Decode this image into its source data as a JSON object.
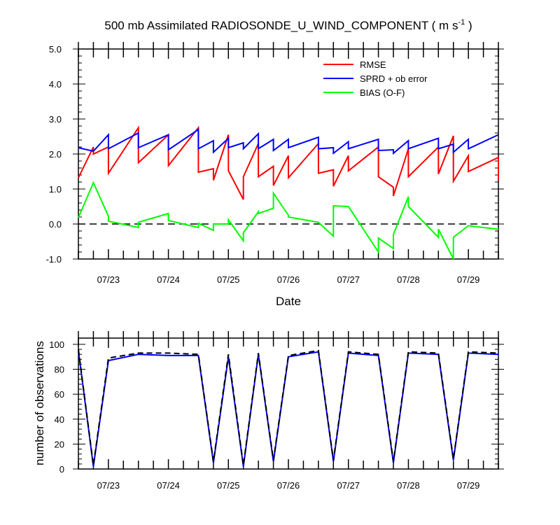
{
  "chart_data": [
    {
      "type": "line",
      "title": "500 mb Assimilated RADIOSONDE_U_WIND_COMPONENT ( m s",
      "title_units_sup": "-1",
      "title_close": " )",
      "xlabel": "Date",
      "ylabel": "",
      "xlim": [
        "07/22 12Z",
        "07/29 12Z"
      ],
      "ylim": [
        -1.0,
        5.0
      ],
      "x_tick_labels": [
        "07/23",
        "07/24",
        "07/25",
        "07/26",
        "07/27",
        "07/28",
        "07/29"
      ],
      "y_tick_labels": [
        "-1.0",
        "0.0",
        "1.0",
        "2.0",
        "3.0",
        "4.0",
        "5.0"
      ],
      "legend_position": "top-right",
      "reference_line": 0.0,
      "series": [
        {
          "name": "RMSE",
          "color": "#ff0000",
          "points": [
            [
              -0.5,
              1.32
            ],
            [
              -0.25,
              2.2
            ],
            [
              -0.25,
              2.0
            ],
            [
              0.0,
              2.2
            ],
            [
              0.0,
              1.45
            ],
            [
              0.5,
              2.75
            ],
            [
              0.5,
              1.75
            ],
            [
              1.0,
              2.55
            ],
            [
              1.0,
              1.67
            ],
            [
              1.5,
              2.75
            ],
            [
              1.5,
              1.48
            ],
            [
              1.75,
              1.58
            ],
            [
              1.75,
              1.25
            ],
            [
              2.0,
              2.55
            ],
            [
              2.0,
              1.52
            ],
            [
              2.25,
              0.7
            ],
            [
              2.25,
              1.35
            ],
            [
              2.5,
              2.3
            ],
            [
              2.5,
              1.35
            ],
            [
              2.75,
              1.65
            ],
            [
              2.75,
              1.1
            ],
            [
              3.0,
              1.95
            ],
            [
              3.0,
              1.32
            ],
            [
              3.5,
              2.3
            ],
            [
              3.5,
              1.45
            ],
            [
              3.75,
              1.55
            ],
            [
              3.75,
              1.08
            ],
            [
              4.0,
              1.95
            ],
            [
              4.0,
              1.52
            ],
            [
              4.5,
              2.2
            ],
            [
              4.5,
              1.35
            ],
            [
              4.75,
              1.05
            ],
            [
              4.75,
              0.8
            ],
            [
              5.0,
              2.15
            ],
            [
              5.0,
              1.35
            ],
            [
              5.5,
              2.2
            ],
            [
              5.5,
              1.43
            ],
            [
              5.75,
              2.52
            ],
            [
              5.75,
              1.22
            ],
            [
              6.0,
              1.95
            ],
            [
              6.0,
              1.5
            ],
            [
              6.5,
              1.9
            ],
            [
              6.5,
              1.25
            ]
          ]
        },
        {
          "name": "SPRD + ob error",
          "color": "#0000ff",
          "points": [
            [
              -0.5,
              2.18
            ],
            [
              -0.25,
              2.08
            ],
            [
              0.0,
              2.55
            ],
            [
              0.0,
              2.15
            ],
            [
              0.5,
              2.6
            ],
            [
              0.5,
              2.18
            ],
            [
              1.0,
              2.55
            ],
            [
              1.0,
              2.12
            ],
            [
              1.5,
              2.7
            ],
            [
              1.5,
              2.15
            ],
            [
              1.75,
              2.38
            ],
            [
              1.75,
              2.05
            ],
            [
              2.0,
              2.45
            ],
            [
              2.0,
              2.18
            ],
            [
              2.25,
              2.32
            ],
            [
              2.25,
              2.15
            ],
            [
              2.5,
              2.58
            ],
            [
              2.5,
              2.15
            ],
            [
              2.75,
              2.42
            ],
            [
              2.75,
              2.1
            ],
            [
              3.0,
              2.42
            ],
            [
              3.0,
              2.18
            ],
            [
              3.5,
              2.48
            ],
            [
              3.5,
              2.15
            ],
            [
              3.75,
              2.18
            ],
            [
              3.75,
              2.02
            ],
            [
              4.0,
              2.35
            ],
            [
              4.0,
              2.15
            ],
            [
              4.5,
              2.42
            ],
            [
              4.5,
              2.1
            ],
            [
              4.75,
              2.12
            ],
            [
              4.75,
              2.02
            ],
            [
              5.0,
              2.38
            ],
            [
              5.0,
              2.15
            ],
            [
              5.5,
              2.45
            ],
            [
              5.5,
              2.15
            ],
            [
              5.75,
              2.28
            ],
            [
              5.75,
              2.05
            ],
            [
              6.0,
              2.42
            ],
            [
              6.0,
              2.15
            ],
            [
              6.5,
              2.55
            ]
          ]
        },
        {
          "name": "BIAS (O-F)",
          "color": "#00ff00",
          "points": [
            [
              -0.5,
              0.18
            ],
            [
              -0.25,
              1.18
            ],
            [
              0.0,
              0.22
            ],
            [
              0.0,
              0.08
            ],
            [
              0.5,
              -0.1
            ],
            [
              0.5,
              0.05
            ],
            [
              1.0,
              0.3
            ],
            [
              1.0,
              0.1
            ],
            [
              1.5,
              -0.1
            ],
            [
              1.5,
              0.02
            ],
            [
              1.75,
              -0.18
            ],
            [
              1.75,
              0.0
            ],
            [
              2.0,
              0.0
            ],
            [
              2.0,
              0.12
            ],
            [
              2.25,
              -0.48
            ],
            [
              2.25,
              -0.25
            ],
            [
              2.5,
              0.35
            ],
            [
              2.5,
              0.3
            ],
            [
              2.75,
              0.45
            ],
            [
              2.75,
              0.88
            ],
            [
              3.0,
              0.25
            ],
            [
              3.0,
              0.2
            ],
            [
              3.5,
              0.05
            ],
            [
              3.75,
              -0.35
            ],
            [
              3.75,
              0.52
            ],
            [
              4.0,
              0.5
            ],
            [
              4.5,
              -0.8
            ],
            [
              4.5,
              -0.4
            ],
            [
              4.75,
              -0.7
            ],
            [
              4.75,
              -0.3
            ],
            [
              5.0,
              0.78
            ],
            [
              5.0,
              0.5
            ],
            [
              5.5,
              -0.38
            ],
            [
              5.5,
              -0.15
            ],
            [
              5.75,
              -1.0
            ],
            [
              5.75,
              -0.38
            ],
            [
              6.0,
              -0.05
            ],
            [
              6.5,
              -0.15
            ]
          ]
        }
      ]
    },
    {
      "type": "line",
      "title": "",
      "xlabel": "",
      "ylabel": "number of observations",
      "xlim": [
        "07/22 12Z",
        "07/29 12Z"
      ],
      "ylim": [
        0,
        105
      ],
      "x_tick_labels": [
        "07/23",
        "07/24",
        "07/25",
        "07/26",
        "07/27",
        "07/28",
        "07/29"
      ],
      "y_tick_labels": [
        "0",
        "20",
        "40",
        "60",
        "80",
        "100"
      ],
      "series": [
        {
          "color": "#0000ff",
          "line_style": "solid",
          "points": [
            [
              -0.5,
              95
            ],
            [
              -0.25,
              2
            ],
            [
              0.0,
              87
            ],
            [
              0.5,
              92
            ],
            [
              1.0,
              91
            ],
            [
              1.5,
              91
            ],
            [
              1.75,
              5
            ],
            [
              2.0,
              90
            ],
            [
              2.25,
              2
            ],
            [
              2.5,
              92
            ],
            [
              2.75,
              6
            ],
            [
              3.0,
              90
            ],
            [
              3.5,
              94
            ],
            [
              3.75,
              6
            ],
            [
              4.0,
              93
            ],
            [
              4.5,
              91
            ],
            [
              4.75,
              5
            ],
            [
              5.0,
              93
            ],
            [
              5.5,
              92
            ],
            [
              5.75,
              7
            ],
            [
              6.0,
              93
            ],
            [
              6.5,
              92
            ]
          ]
        },
        {
          "color": "#000000",
          "line_style": "dashed",
          "points": [
            [
              -0.5,
              96
            ],
            [
              -0.25,
              3
            ],
            [
              0.0,
              89
            ],
            [
              0.5,
              93
            ],
            [
              1.0,
              93
            ],
            [
              1.5,
              92
            ],
            [
              1.75,
              6
            ],
            [
              2.0,
              92
            ],
            [
              2.25,
              3
            ],
            [
              2.5,
              93
            ],
            [
              2.75,
              7
            ],
            [
              3.0,
              91
            ],
            [
              3.5,
              95
            ],
            [
              3.75,
              7
            ],
            [
              4.0,
              94
            ],
            [
              4.5,
              92
            ],
            [
              4.75,
              6
            ],
            [
              5.0,
              94
            ],
            [
              5.5,
              93
            ],
            [
              5.75,
              8
            ],
            [
              6.0,
              94
            ],
            [
              6.5,
              93
            ]
          ]
        }
      ]
    }
  ]
}
